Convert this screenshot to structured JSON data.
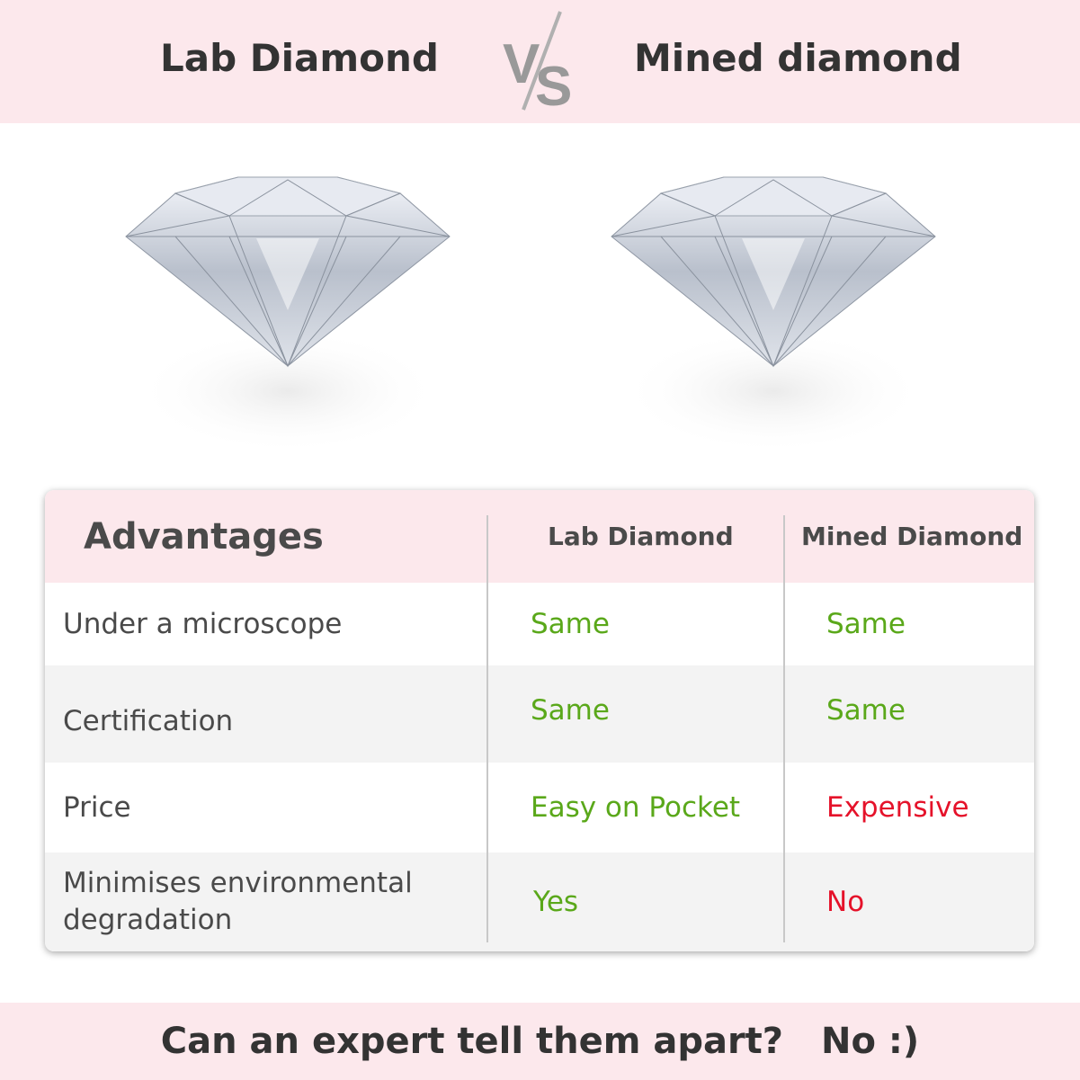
{
  "header": {
    "left_title": "Lab Diamond",
    "vs_logo": "VS",
    "right_title": "Mined diamond"
  },
  "images": [
    {
      "name": "lab-diamond-image"
    },
    {
      "name": "mined-diamond-image"
    }
  ],
  "table": {
    "headers": [
      "Advantages",
      "Lab Diamond",
      "Mined Diamond"
    ],
    "rows": [
      {
        "label": "Under a microscope",
        "lab": "Same",
        "mined": "Same"
      },
      {
        "label": "Certification",
        "lab": "Same",
        "mined": "Same"
      },
      {
        "label": "Price",
        "lab": "Easy on Pocket",
        "mined": "Expensive"
      },
      {
        "label": "Minimises environmental degradation",
        "lab": "Yes",
        "mined": "No"
      }
    ]
  },
  "footer": {
    "question": "Can an expert tell them apart?",
    "answer": "No :)"
  },
  "colors": {
    "band": "#fce8ec",
    "positive": "#5aa81a",
    "negative": "#e5122a",
    "row_alt": "#f3f3f3"
  }
}
